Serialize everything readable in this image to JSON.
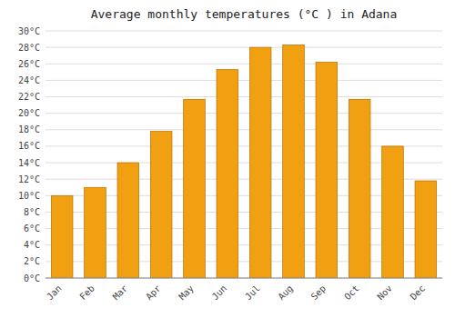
{
  "chart_data": {
    "type": "bar",
    "title": "Average monthly temperatures (°C ) in Adana",
    "categories": [
      "Jan",
      "Feb",
      "Mar",
      "Apr",
      "May",
      "Jun",
      "Jul",
      "Aug",
      "Sep",
      "Oct",
      "Nov",
      "Dec"
    ],
    "values": [
      10.0,
      11.0,
      14.0,
      17.8,
      21.7,
      25.3,
      28.0,
      28.3,
      26.2,
      21.7,
      16.0,
      11.8
    ],
    "color": "#F0A010",
    "ylim": [
      0,
      30
    ],
    "yticks": [
      {
        "value": 0,
        "label": "0°C"
      },
      {
        "value": 2,
        "label": "2°C"
      },
      {
        "value": 4,
        "label": "4°C"
      },
      {
        "value": 6,
        "label": "6°C"
      },
      {
        "value": 8,
        "label": "8°C"
      },
      {
        "value": 10,
        "label": "10°C"
      },
      {
        "value": 12,
        "label": "12°C"
      },
      {
        "value": 14,
        "label": "14°C"
      },
      {
        "value": 16,
        "label": "16°C"
      },
      {
        "value": 18,
        "label": "18°C"
      },
      {
        "value": 20,
        "label": "20°C"
      },
      {
        "value": 22,
        "label": "22°C"
      },
      {
        "value": 24,
        "label": "24°C"
      },
      {
        "value": 26,
        "label": "26°C"
      },
      {
        "value": 28,
        "label": "28°C"
      },
      {
        "value": 30,
        "label": "30°C"
      }
    ],
    "grid": true
  }
}
